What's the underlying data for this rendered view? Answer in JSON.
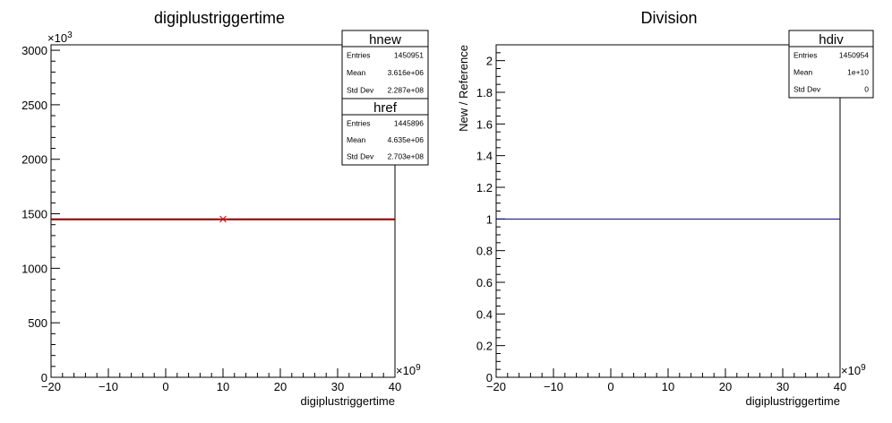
{
  "chart_data": [
    {
      "type": "line",
      "title": "digiplustriggertime",
      "xlabel": "digiplustriggertime",
      "ylabel": "",
      "x_exponent_label": "×10",
      "x_exponent_power": "9",
      "y_exponent_label": "×10",
      "y_exponent_power": "3",
      "xlim": [
        -20,
        40
      ],
      "ylim": [
        0,
        3050
      ],
      "x_ticks": [
        -20,
        -10,
        0,
        10,
        20,
        30,
        40
      ],
      "x_tick_labels": [
        "−20",
        "−10",
        "0",
        "10",
        "20",
        "30",
        "40"
      ],
      "y_ticks": [
        0,
        500,
        1000,
        1500,
        2000,
        2500,
        3000
      ],
      "y_tick_labels": [
        "0",
        "500",
        "1000",
        "1500",
        "2000",
        "2500",
        "3000"
      ],
      "series": [
        {
          "name": "hnew",
          "color": "#000000",
          "x": [
            -20,
            40
          ],
          "y": [
            1450.951,
            1450.951
          ]
        },
        {
          "name": "href",
          "color": "#cc0000",
          "x": [
            -20,
            40
          ],
          "y": [
            1445.896,
            1445.896
          ]
        }
      ],
      "marker": {
        "x": 10,
        "y": 1450.951,
        "color": "#cc0000"
      },
      "stats_boxes": [
        {
          "name": "hnew",
          "rows": [
            {
              "key": "Entries",
              "value": "1450951"
            },
            {
              "key": "Mean",
              "value": "3.616e+06"
            },
            {
              "key": "Std Dev",
              "value": "2.287e+08"
            }
          ]
        },
        {
          "name": "href",
          "rows": [
            {
              "key": "Entries",
              "value": "1445896"
            },
            {
              "key": "Mean",
              "value": "4.635e+06"
            },
            {
              "key": "Std Dev",
              "value": "2.703e+08"
            }
          ]
        }
      ]
    },
    {
      "type": "line",
      "title": "Division",
      "xlabel": "digiplustriggertime",
      "ylabel": "New / Reference",
      "x_exponent_label": "×10",
      "x_exponent_power": "9",
      "xlim": [
        -20,
        40
      ],
      "ylim": [
        0,
        2.1
      ],
      "x_ticks": [
        -20,
        -10,
        0,
        10,
        20,
        30,
        40
      ],
      "x_tick_labels": [
        "−20",
        "−10",
        "0",
        "10",
        "20",
        "30",
        "40"
      ],
      "y_ticks": [
        0,
        0.2,
        0.4,
        0.6,
        0.8,
        1,
        1.2,
        1.4,
        1.6,
        1.8,
        2
      ],
      "y_tick_labels": [
        "0",
        "0.2",
        "0.4",
        "0.6",
        "0.8",
        "1",
        "1.2",
        "1.4",
        "1.6",
        "1.8",
        "2"
      ],
      "series": [
        {
          "name": "hdiv",
          "color": "#000080",
          "x": [
            -20,
            40
          ],
          "y": [
            1,
            1
          ]
        }
      ],
      "stats_boxes": [
        {
          "name": "hdiv",
          "rows": [
            {
              "key": "Entries",
              "value": "1450954"
            },
            {
              "key": "Mean",
              "value": "1e+10"
            },
            {
              "key": "Std Dev",
              "value": "0"
            }
          ]
        }
      ]
    }
  ]
}
